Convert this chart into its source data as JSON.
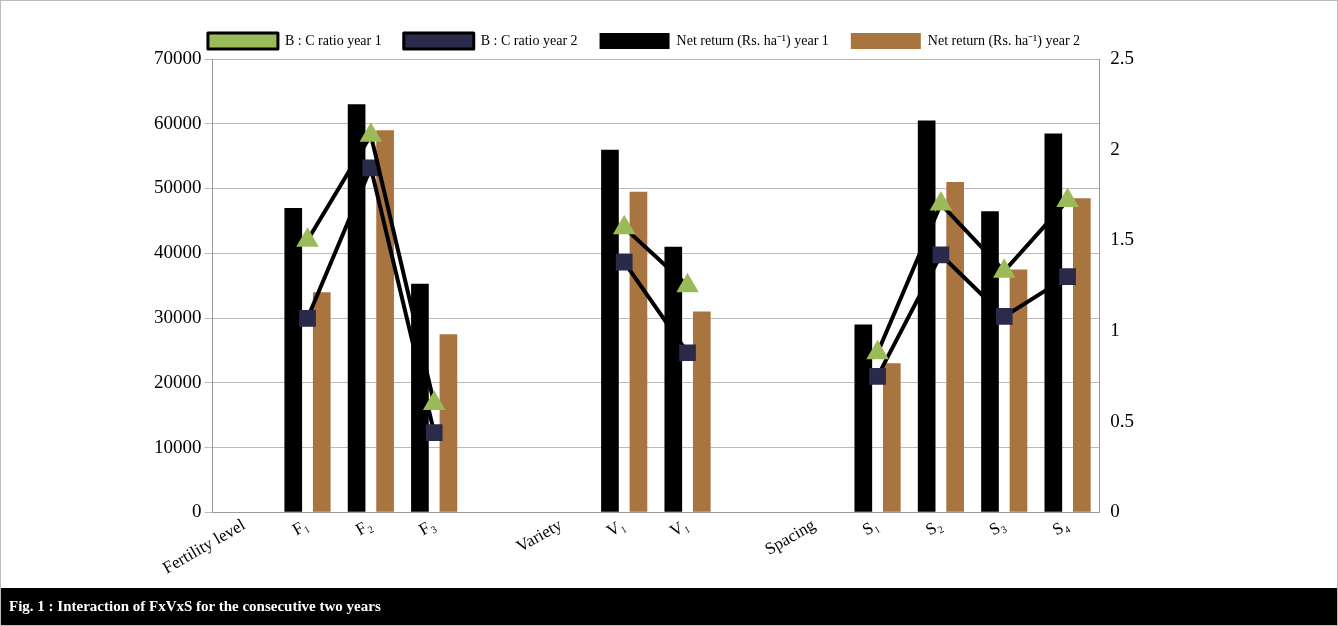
{
  "chart_data": {
    "type": "bar",
    "categories": [
      "Fertility level",
      "F₁",
      "F₂",
      "F₃",
      null,
      "Variety",
      "V₁",
      "V₁",
      null,
      "Spacing",
      "S₁",
      "S₂",
      "S₃",
      "S₄"
    ],
    "series": [
      {
        "name": "Net return (Rs. ha⁻¹) year 1",
        "color": "#000000",
        "values": [
          null,
          47000,
          63000,
          35300,
          null,
          null,
          56000,
          41000,
          null,
          null,
          29000,
          60500,
          46500,
          58500
        ]
      },
      {
        "name": "Net return (Rs. ha⁻¹) year 2",
        "color": "#a8743f",
        "values": [
          null,
          34000,
          59000,
          27500,
          null,
          null,
          49500,
          31000,
          null,
          null,
          23000,
          51000,
          37500,
          48500
        ]
      },
      {
        "name": "B : C ratio year 1",
        "type": "line",
        "axis": "y2",
        "marker": "triangle",
        "color": "#9bbb59",
        "values": [
          null,
          1.5,
          2.08,
          0.6,
          null,
          null,
          1.57,
          1.25,
          null,
          null,
          0.88,
          1.7,
          1.33,
          1.72
        ]
      },
      {
        "name": "B : C ratio year 2",
        "type": "line",
        "axis": "y2",
        "marker": "square",
        "color": "#2a2a4a",
        "values": [
          null,
          1.07,
          1.9,
          0.44,
          null,
          null,
          1.38,
          0.88,
          null,
          null,
          0.75,
          1.42,
          1.08,
          1.3
        ]
      }
    ],
    "ylim": [
      0,
      70000
    ],
    "yticks": [
      0,
      10000,
      20000,
      30000,
      40000,
      50000,
      60000,
      70000
    ],
    "y2lim": [
      0,
      2.5
    ],
    "y2ticks": [
      0,
      0.5,
      1,
      1.5,
      2,
      2.5
    ],
    "grid": "y",
    "legend": "top",
    "annotations": [
      "Fig. 1 : Interaction of FxVxS for the consecutive two years"
    ]
  }
}
